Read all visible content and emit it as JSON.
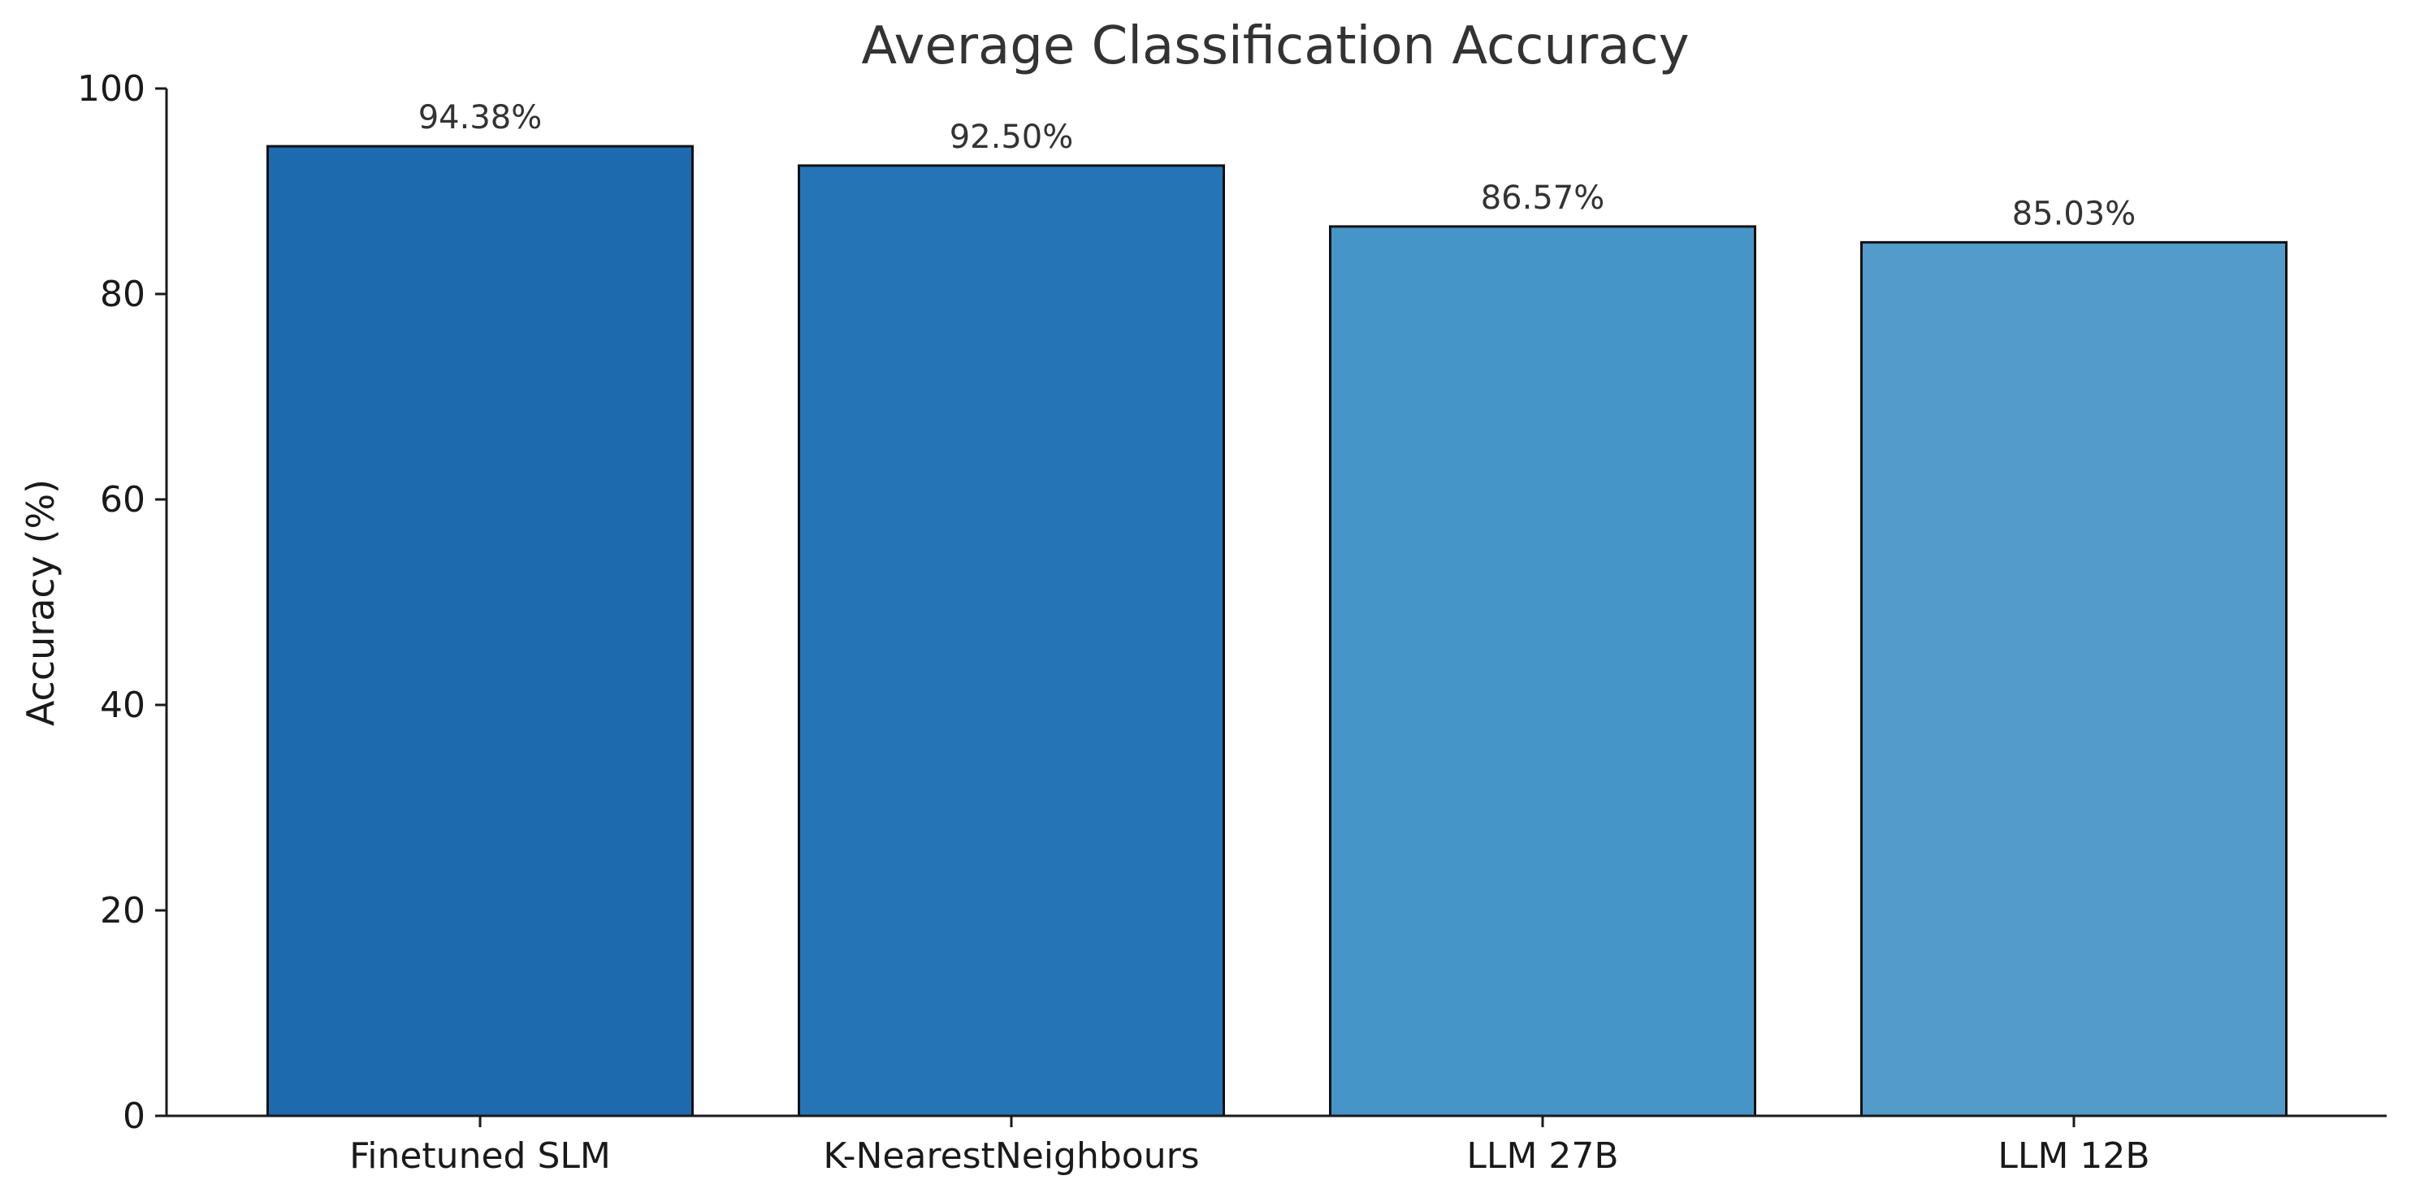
{
  "chart_data": {
    "type": "bar",
    "title": "Average Classification Accuracy",
    "xlabel": "",
    "ylabel": "Accuracy (%)",
    "ylim": [
      0,
      100
    ],
    "yticks": [
      0,
      20,
      40,
      60,
      80,
      100
    ],
    "categories": [
      "Finetuned SLM",
      "K-NearestNeighbours",
      "LLM 27B",
      "LLM 12B"
    ],
    "values": [
      94.38,
      92.5,
      86.57,
      85.03
    ],
    "value_labels": [
      "94.38%",
      "92.50%",
      "86.57%",
      "85.03%"
    ],
    "colors": [
      "#1d6aae",
      "#2574b5",
      "#4595c8",
      "#529bcb"
    ],
    "grid": false,
    "legend": "none"
  }
}
